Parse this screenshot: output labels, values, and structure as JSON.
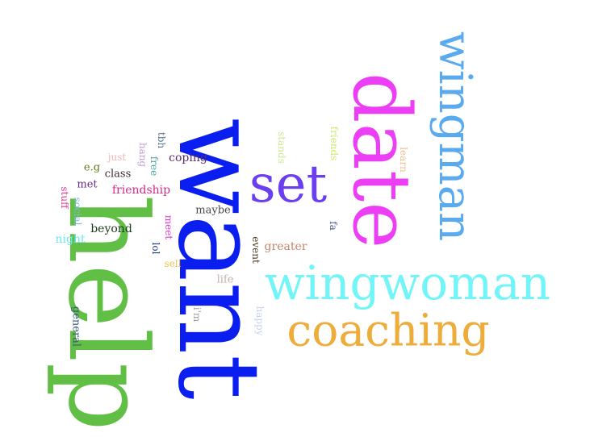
{
  "words": [
    {
      "id": "help",
      "text": "help",
      "color": "#62bf46"
    },
    {
      "id": "want",
      "text": "want",
      "color": "#0b1ef0"
    },
    {
      "id": "date",
      "text": "date",
      "color": "#ec3ef5"
    },
    {
      "id": "wingman",
      "text": "wingman",
      "color": "#5aaaf0"
    },
    {
      "id": "wingwoman",
      "text": "wingwoman",
      "color": "#72f5f8"
    },
    {
      "id": "coaching",
      "text": "coaching",
      "color": "#eeac3a"
    },
    {
      "id": "set",
      "text": "set",
      "color": "#6b3ff0"
    },
    {
      "id": "stands",
      "text": "stands",
      "color": "#c9ea92"
    },
    {
      "id": "friends",
      "text": "friends",
      "color": "#c9ea6a"
    },
    {
      "id": "learn",
      "text": "learn",
      "color": "#f0c090"
    },
    {
      "id": "fa",
      "text": "fa",
      "color": "#4b5a8c"
    },
    {
      "id": "greater",
      "text": "greater",
      "color": "#c2866a"
    },
    {
      "id": "event",
      "text": "event",
      "color": "#4a3a20"
    },
    {
      "id": "happy",
      "text": "happy",
      "color": "#c8d2ee"
    },
    {
      "id": "life",
      "text": "life",
      "color": "#c0b0a8"
    },
    {
      "id": "im",
      "text": "i'm",
      "color": "#a0a0a0"
    },
    {
      "id": "sell",
      "text": "sell",
      "color": "#f0c050"
    },
    {
      "id": "lol",
      "text": "lol",
      "color": "#1a3a9a"
    },
    {
      "id": "meet",
      "text": "meet",
      "color": "#e03ad0"
    },
    {
      "id": "maybe",
      "text": "maybe",
      "color": "#4a4a4a"
    },
    {
      "id": "coping",
      "text": "coping",
      "color": "#5a2a6a"
    },
    {
      "id": "tbh",
      "text": "tbh",
      "color": "#5a7a8a"
    },
    {
      "id": "free",
      "text": "free",
      "color": "#4aa09a"
    },
    {
      "id": "hang",
      "text": "hang",
      "color": "#c0a0d0"
    },
    {
      "id": "just",
      "text": "just",
      "color": "#f0b8b8"
    },
    {
      "id": "eg",
      "text": "e.g",
      "color": "#5a7a1a"
    },
    {
      "id": "class",
      "text": "class",
      "color": "#3a2a2a"
    },
    {
      "id": "met",
      "text": "met",
      "color": "#6a2a8a"
    },
    {
      "id": "friendship",
      "text": "friendship",
      "color": "#d02a8a"
    },
    {
      "id": "stuff",
      "text": "stuff",
      "color": "#e03a8a"
    },
    {
      "id": "social",
      "text": "social",
      "color": "#80b8e8"
    },
    {
      "id": "beyond",
      "text": "beyond",
      "color": "#1a3a1a"
    },
    {
      "id": "night",
      "text": "night",
      "color": "#6ae8f0"
    },
    {
      "id": "general",
      "text": "general",
      "color": "#3a5a7a"
    }
  ]
}
